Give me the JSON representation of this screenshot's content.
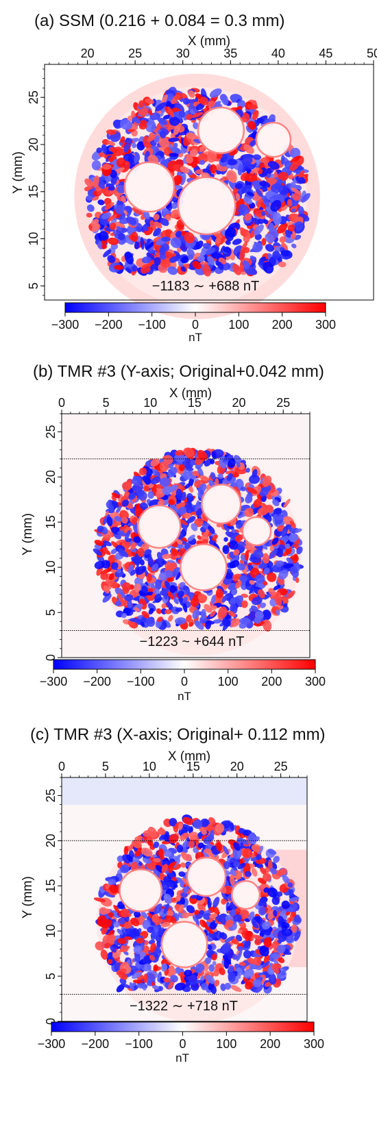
{
  "chart_data": [
    {
      "type": "heatmap",
      "title": "(a) SSM (0.216 + 0.084 = 0.3 mm)",
      "xlabel": "X (mm)",
      "ylabel": "Y (mm)",
      "xlim": [
        15.5,
        50
      ],
      "ylim": [
        3.5,
        28.5
      ],
      "xticks": [
        "20",
        "25",
        "30",
        "35",
        "40",
        "45",
        "50"
      ],
      "yticks": [
        "5",
        "10",
        "15",
        "20",
        "25"
      ],
      "range_text": "−1183 ∼ +688 nT",
      "colorbar": {
        "min": -300,
        "max": 300,
        "ticks": [
          "−300",
          "−200",
          "−100",
          "0",
          "100",
          "200",
          "300"
        ],
        "label": "nT",
        "colors": [
          "#0000ff",
          "#ffffff",
          "#ff0000"
        ]
      },
      "sample": {
        "cx": 31.5,
        "cy": 14.5,
        "r": 11.5,
        "ymin": 6.5,
        "holes": [
          [
            26.5,
            15.5,
            2.6
          ],
          [
            32.5,
            13.5,
            3.0
          ],
          [
            34,
            21.5,
            2.4
          ],
          [
            39.5,
            20.5,
            1.8
          ]
        ]
      }
    },
    {
      "type": "heatmap",
      "title": "(b) TMR #3 (Y-axis; Original+0.042 mm)",
      "xlabel": "X (mm)",
      "ylabel": "Y (mm)",
      "xlim": [
        0,
        28
      ],
      "ylim": [
        0,
        27
      ],
      "xticks": [
        "0",
        "5",
        "10",
        "15",
        "20",
        "25"
      ],
      "yticks": [
        "0",
        "5",
        "10",
        "15",
        "20",
        "25"
      ],
      "dotted_lines_y": [
        22,
        3
      ],
      "range_text": "−1223 ~ +644 nT",
      "colorbar": {
        "min": -300,
        "max": 300,
        "ticks": [
          "−300",
          "−200",
          "−100",
          "0",
          "100",
          "200",
          "300"
        ],
        "label": "nT",
        "colors": [
          "#0000ff",
          "#ffffff",
          "#ff0000"
        ]
      },
      "sample": {
        "cx": 15.5,
        "cy": 11.5,
        "r": 11.5,
        "ymin": 3.5,
        "holes": [
          [
            11,
            14.5,
            2.4
          ],
          [
            16,
            10,
            2.6
          ],
          [
            18,
            17,
            2.2
          ],
          [
            22,
            14,
            1.6
          ]
        ]
      }
    },
    {
      "type": "heatmap",
      "title": "(c) TMR #3 (X-axis; Original+ 0.112 mm)",
      "xlabel": "X (mm)",
      "ylabel": "Y (mm)",
      "xlim": [
        0,
        28
      ],
      "ylim": [
        0,
        27
      ],
      "xticks": [
        "0",
        "5",
        "10",
        "15",
        "20",
        "25"
      ],
      "yticks": [
        "0",
        "5",
        "10",
        "15",
        "20",
        "25"
      ],
      "dotted_lines_y": [
        20,
        3
      ],
      "range_text": "−1322 ∼ +718 nT",
      "colorbar": {
        "min": -300,
        "max": 300,
        "ticks": [
          "−300",
          "−200",
          "−100",
          "0",
          "100",
          "200",
          "300"
        ],
        "label": "nT",
        "colors": [
          "#0000ff",
          "#ffffff",
          "#ff0000"
        ]
      },
      "sample": {
        "cx": 15.5,
        "cy": 11,
        "r": 11.5,
        "ymin": 3.5,
        "holes": [
          [
            9,
            14.5,
            2.4
          ],
          [
            14,
            8.5,
            2.6
          ],
          [
            16.5,
            16,
            2.2
          ],
          [
            21,
            14,
            1.6
          ]
        ]
      }
    }
  ]
}
